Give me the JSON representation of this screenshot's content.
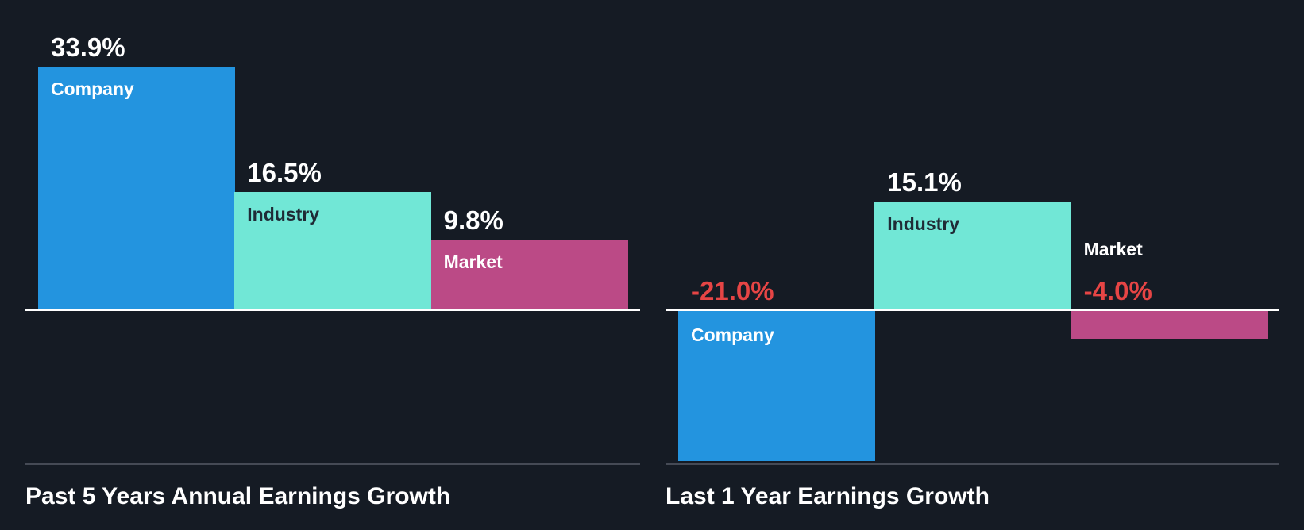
{
  "colors": {
    "background": "#151b24",
    "company": "#2394df",
    "industry": "#71e7d6",
    "market": "#bb4a86",
    "positive_value_text": "#ffffff",
    "negative_value_text": "#e64545",
    "label_on_dark_bar": "#ffffff",
    "label_on_light_bar": "#1f2b36",
    "axis_line": "#ffffff",
    "baseline_rule": "#454a55"
  },
  "charts": [
    {
      "title": "Past 5 Years Annual Earnings Growth",
      "bars": [
        {
          "name": "Company",
          "value": 33.9,
          "display": "33.9%"
        },
        {
          "name": "Industry",
          "value": 16.5,
          "display": "16.5%"
        },
        {
          "name": "Market",
          "value": 9.8,
          "display": "9.8%"
        }
      ]
    },
    {
      "title": "Last 1 Year Earnings Growth",
      "bars": [
        {
          "name": "Company",
          "value": -21.0,
          "display": "-21.0%"
        },
        {
          "name": "Industry",
          "value": 15.1,
          "display": "15.1%"
        },
        {
          "name": "Market",
          "value": -4.0,
          "display": "-4.0%"
        }
      ]
    }
  ],
  "chart_data": [
    {
      "type": "bar",
      "title": "Past 5 Years Annual Earnings Growth",
      "categories": [
        "Company",
        "Industry",
        "Market"
      ],
      "values": [
        33.9,
        16.5,
        9.8
      ],
      "unit": "%",
      "xlabel": "",
      "ylabel": "",
      "grid": false,
      "legend": "none (labels inside bars)",
      "colors": [
        "#2394df",
        "#71e7d6",
        "#bb4a86"
      ]
    },
    {
      "type": "bar",
      "title": "Last 1 Year Earnings Growth",
      "categories": [
        "Company",
        "Industry",
        "Market"
      ],
      "values": [
        -21.0,
        15.1,
        -4.0
      ],
      "unit": "%",
      "xlabel": "",
      "ylabel": "",
      "grid": false,
      "legend": "none (labels inside bars)",
      "colors": [
        "#2394df",
        "#71e7d6",
        "#bb4a86"
      ]
    }
  ]
}
